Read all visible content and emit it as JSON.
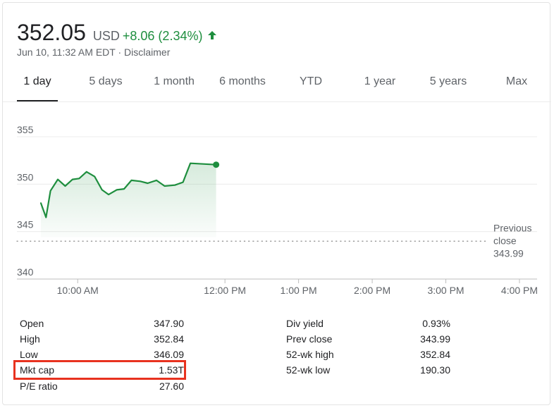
{
  "quote": {
    "price": "352.05",
    "currency": "USD",
    "change": "+8.06 (2.34%)",
    "direction_icon": "arrow-up-icon",
    "timestamp": "Jun 10, 11:32 AM EDT",
    "separator": "·",
    "disclaimer": "Disclaimer"
  },
  "colors": {
    "positive": "#1e8e3e",
    "line": "#1e8e3e",
    "highlight": "#e8321f",
    "text": "#202124",
    "muted": "#5f6368"
  },
  "tabs": [
    {
      "label": "1 day",
      "active": true
    },
    {
      "label": "5 days",
      "active": false
    },
    {
      "label": "1 month",
      "active": false
    },
    {
      "label": "6 months",
      "active": false
    },
    {
      "label": "YTD",
      "active": false
    },
    {
      "label": "1 year",
      "active": false
    },
    {
      "label": "5 years",
      "active": false
    },
    {
      "label": "Max",
      "active": false
    }
  ],
  "chart_data": {
    "type": "area",
    "ylim": [
      340,
      355
    ],
    "y_ticks": [
      {
        "value": 355,
        "label": "355"
      },
      {
        "value": 350,
        "label": "350"
      },
      {
        "value": 345,
        "label": "345"
      },
      {
        "value": 340,
        "label": "340"
      }
    ],
    "x_ticks": [
      "10:00 AM",
      "12:00 PM",
      "1:00 PM",
      "2:00 PM",
      "3:00 PM",
      "4:00 PM"
    ],
    "x_tick_hours": [
      10,
      12,
      13,
      14,
      15,
      16
    ],
    "x_range_hours": [
      9.5,
      16
    ],
    "grid": true,
    "series": [
      {
        "x": [
          9.5,
          9.57,
          9.63,
          9.73,
          9.83,
          9.93,
          10.02,
          10.12,
          10.23,
          10.33,
          10.42,
          10.53,
          10.63,
          10.73,
          10.85,
          10.95,
          11.07,
          11.18,
          11.32,
          11.43,
          11.53
        ],
        "y": [
          348.0,
          346.5,
          349.3,
          350.5,
          349.8,
          350.5,
          350.6,
          351.3,
          350.8,
          349.4,
          348.9,
          349.4,
          349.5,
          350.4,
          350.3,
          350.1,
          350.4,
          349.8,
          349.9,
          350.2,
          352.2
        ]
      }
    ],
    "last_point": {
      "x": 11.88,
      "y": 352.05
    },
    "previous_close": {
      "value": 343.99,
      "label_line1": "Previous",
      "label_line2": "close",
      "label_value": "343.99"
    }
  },
  "stats": {
    "left": [
      {
        "label": "Open",
        "value": "347.90"
      },
      {
        "label": "High",
        "value": "352.84"
      },
      {
        "label": "Low",
        "value": "346.09"
      },
      {
        "label": "Mkt cap",
        "value": "1.53T"
      },
      {
        "label": "P/E ratio",
        "value": "27.60"
      }
    ],
    "right": [
      {
        "label": "Div yield",
        "value": "0.93%"
      },
      {
        "label": "Prev close",
        "value": "343.99"
      },
      {
        "label": "52-wk high",
        "value": "352.84"
      },
      {
        "label": "52-wk low",
        "value": "190.30"
      }
    ]
  }
}
